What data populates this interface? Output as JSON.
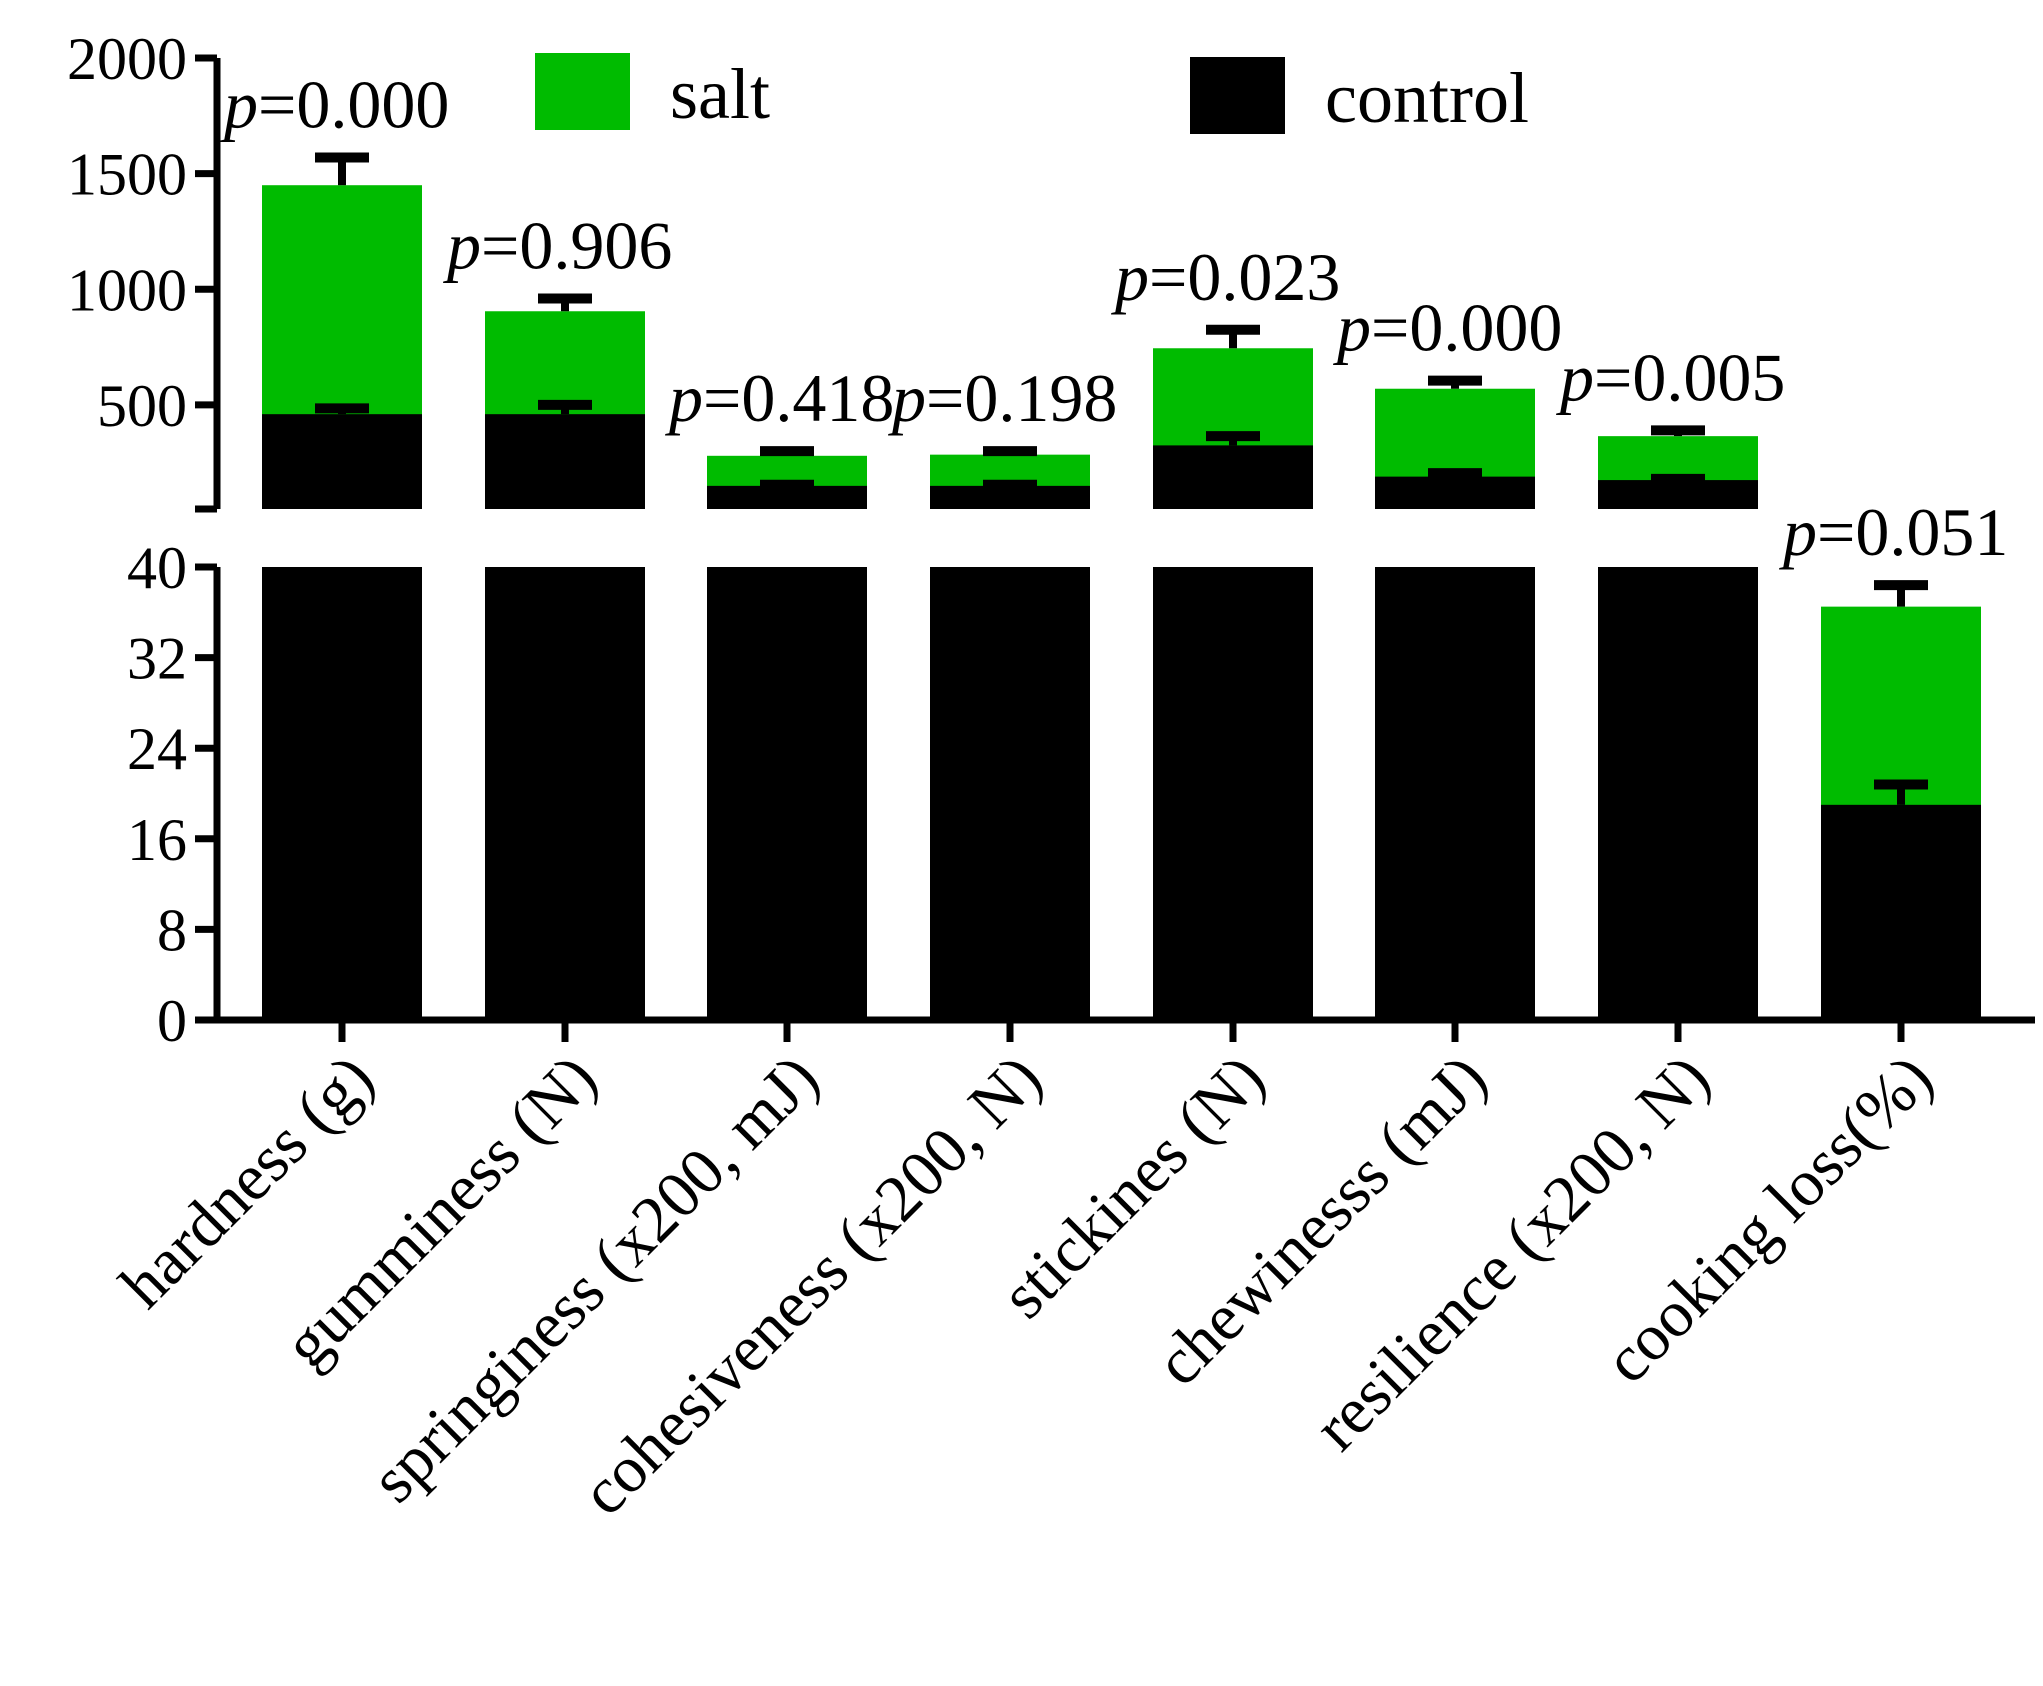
{
  "chart_data": {
    "type": "bar",
    "layout": "overlaid bars with broken y-axis",
    "categories": [
      "hardness (g)",
      "gumminess (N)",
      "springiness (x200, mJ)",
      "cohesiveness (x200, N)",
      "stickines (N)",
      "chewinesss (mJ)",
      "resilience (x200, N)",
      "cooking loss(%)"
    ],
    "series": [
      {
        "name": "salt",
        "color": "#00bb00",
        "values": [
          1450,
          905,
          280,
          285,
          745,
          570,
          365,
          36.5
        ],
        "errors": [
          120,
          55,
          20,
          15,
          80,
          35,
          25,
          1.9
        ]
      },
      {
        "name": "control",
        "color": "#000000",
        "values": [
          460,
          460,
          150,
          150,
          325,
          190,
          175,
          19
        ],
        "errors": [
          25,
          40,
          5,
          5,
          40,
          15,
          5,
          1.8
        ]
      }
    ],
    "p_values": [
      "0.000",
      "0.906",
      "0.418",
      "0.198",
      "0.023",
      "0.000",
      "0.005",
      "0.051"
    ],
    "p_prefix": "p",
    "p_eq": "=",
    "upper_axis": {
      "ylim": [
        50,
        2000
      ],
      "ticks": [
        "500",
        "1000",
        "1500",
        "2000"
      ]
    },
    "lower_axis": {
      "ylim": [
        0,
        40
      ],
      "ticks": [
        "0",
        "8",
        "16",
        "24",
        "32",
        "40"
      ]
    },
    "legend": {
      "placement": "top",
      "entries": [
        "salt",
        "control"
      ]
    },
    "title": "",
    "xlabel": "",
    "ylabel": ""
  }
}
